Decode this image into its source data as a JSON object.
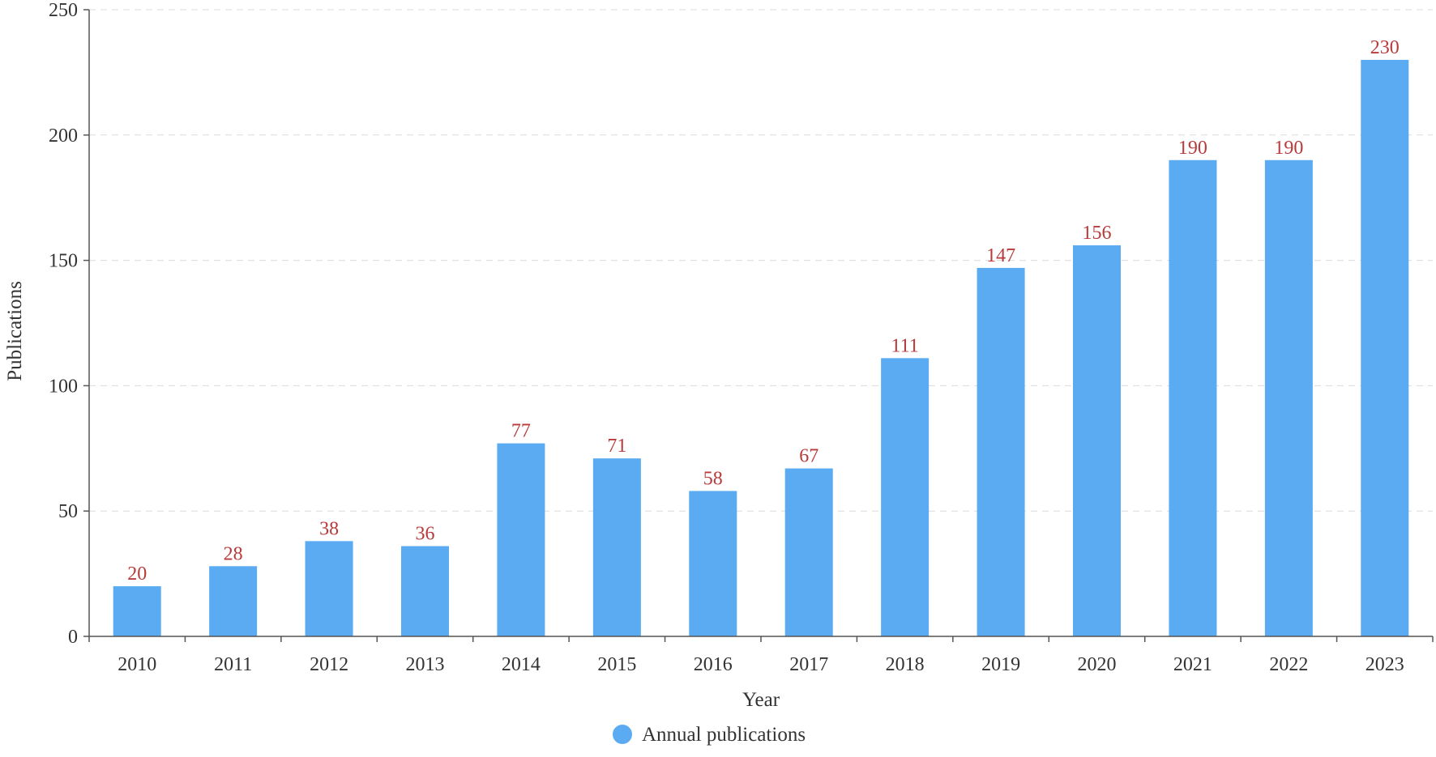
{
  "chart_data": {
    "type": "bar",
    "categories": [
      "2010",
      "2011",
      "2012",
      "2013",
      "2014",
      "2015",
      "2016",
      "2017",
      "2018",
      "2019",
      "2020",
      "2021",
      "2022",
      "2023"
    ],
    "series": [
      {
        "name": "Annual publications",
        "values": [
          20,
          28,
          38,
          36,
          77,
          71,
          58,
          67,
          111,
          147,
          156,
          190,
          190,
          230
        ],
        "color": "#5aabf2"
      }
    ],
    "title": "",
    "xlabel": "Year",
    "ylabel": "Publications",
    "ylim": [
      0,
      250
    ],
    "yticks": [
      0,
      50,
      100,
      150,
      200,
      250
    ],
    "grid": true,
    "legend_position": "bottom-center",
    "data_label_color": "#b83a3a",
    "data_labels": true
  }
}
